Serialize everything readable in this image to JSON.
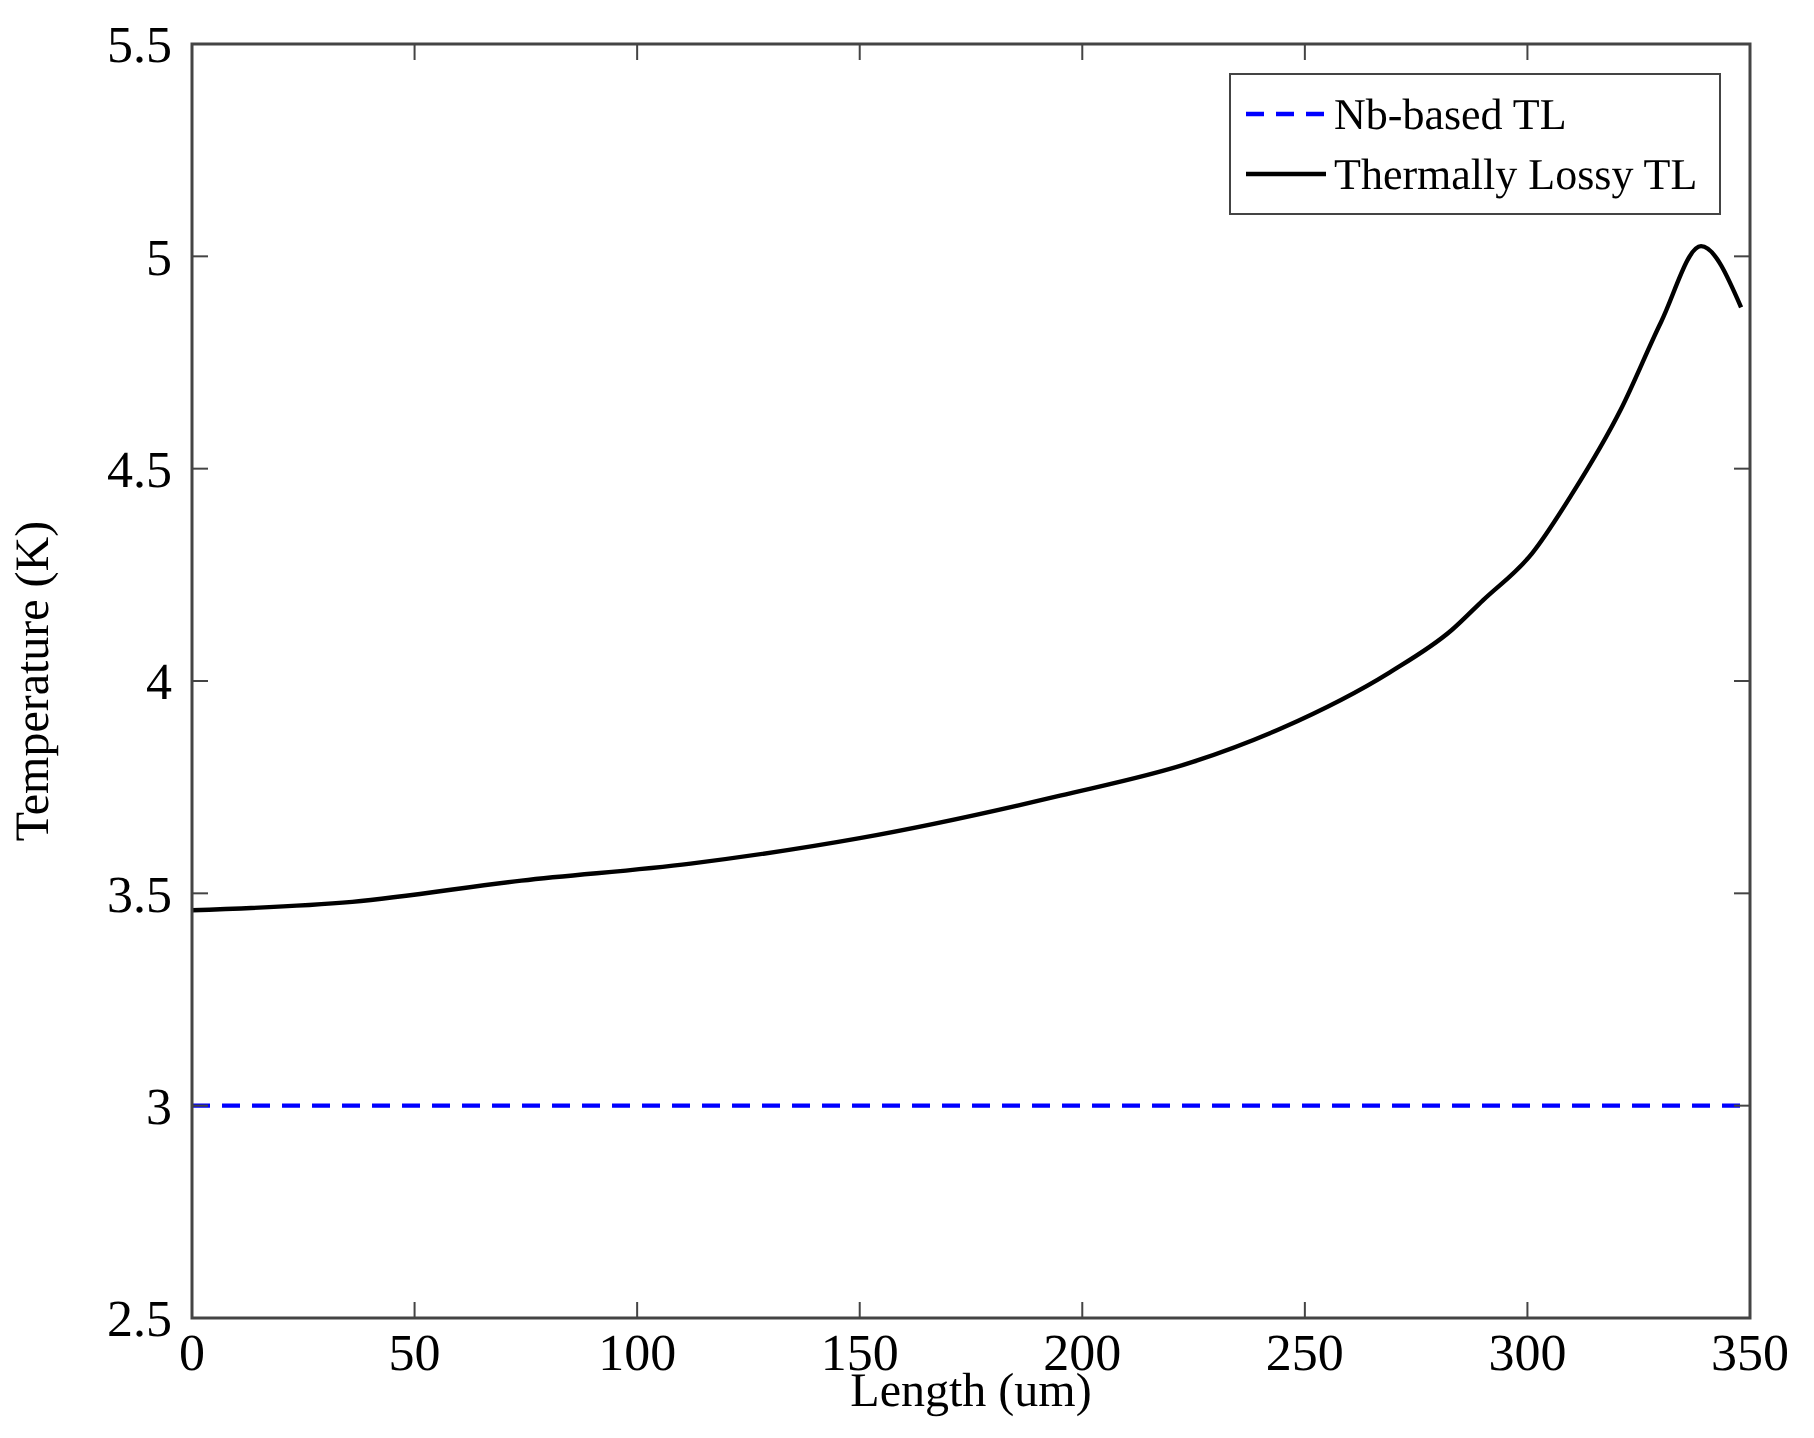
{
  "chart_data": {
    "type": "line",
    "xlabel": "Length (um)",
    "ylabel": "Temperature (K)",
    "xlim": [
      0,
      350
    ],
    "ylim": [
      2.5,
      5.5
    ],
    "xticks": [
      0,
      50,
      100,
      150,
      200,
      250,
      300,
      350
    ],
    "yticks": [
      2.5,
      3,
      3.5,
      4,
      4.5,
      5,
      5.5
    ],
    "grid": false,
    "legend": "top right",
    "series": [
      {
        "name": "Nb-based TL",
        "color": "#0000ff",
        "line_style": "dashed",
        "x": [
          0,
          348
        ],
        "values": [
          3.0,
          3.0
        ]
      },
      {
        "name": "Thermally Lossy TL",
        "color": "#000000",
        "line_style": "solid",
        "x": [
          0,
          36,
          74,
          112,
          150,
          195,
          225,
          245,
          269,
          283,
          290,
          301,
          310,
          321,
          330,
          339,
          348
        ],
        "values": [
          3.46,
          3.48,
          3.53,
          3.57,
          3.63,
          3.73,
          3.81,
          3.89,
          4.02,
          4.12,
          4.19,
          4.3,
          4.44,
          4.64,
          4.845,
          5.024,
          4.88
        ]
      }
    ]
  }
}
